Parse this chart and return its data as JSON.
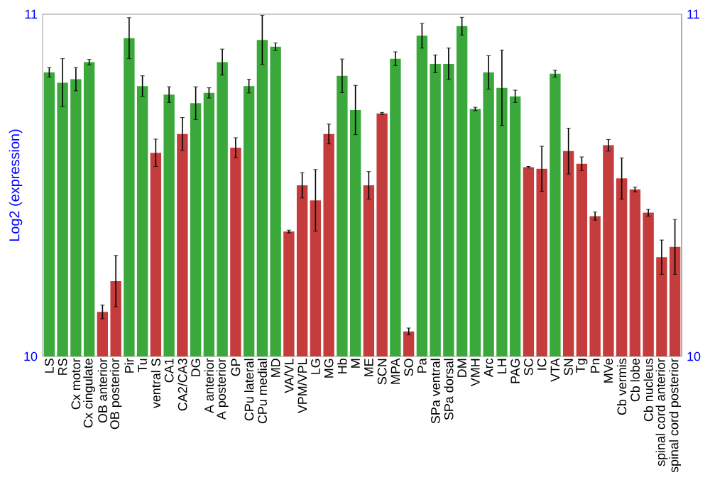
{
  "chart_data": {
    "type": "bar",
    "ylabel": "Log2 (expression)",
    "categories": [
      "LS",
      "RS",
      "Cx motor",
      "Cx cingulate",
      "OB anterior",
      "OB posterior",
      "Pir",
      "Tu",
      "ventral S",
      "CA1",
      "CA2/CA3",
      "DG",
      "A anterior",
      "A posterior",
      "GP",
      "CPu lateral",
      "CPu medial",
      "MD",
      "VA/VL",
      "VPM/VPL",
      "LG",
      "MG",
      "Hb",
      "M",
      "ME",
      "SCN",
      "MPA",
      "SO",
      "Pa",
      "SPa ventral",
      "SPa dorsal",
      "DM",
      "VMH",
      "Arc",
      "LH",
      "PAG",
      "SC",
      "IC",
      "VTA",
      "SN",
      "Tg",
      "Pn",
      "MVe",
      "Cb vermis",
      "Cb lobe",
      "Cb nucleus",
      "spinal cord anterior",
      "spinal cord posterior"
    ],
    "values": [
      10.83,
      10.8,
      10.81,
      10.86,
      10.13,
      10.22,
      10.93,
      10.79,
      10.595,
      10.765,
      10.65,
      10.74,
      10.77,
      10.86,
      10.61,
      10.79,
      10.925,
      10.905,
      10.365,
      10.5,
      10.456,
      10.65,
      10.82,
      10.72,
      10.5,
      10.71,
      10.87,
      10.073,
      10.937,
      10.855,
      10.855,
      10.965,
      10.723,
      10.83,
      10.785,
      10.76,
      10.553,
      10.548,
      10.826,
      10.6,
      10.563,
      10.41,
      10.617,
      10.52,
      10.488,
      10.42,
      10.29,
      10.32
    ],
    "errors": [
      0.014,
      0.07,
      0.034,
      0.008,
      0.02,
      0.075,
      0.06,
      0.03,
      0.04,
      0.023,
      0.048,
      0.048,
      0.015,
      0.038,
      0.029,
      0.02,
      0.072,
      0.011,
      0.004,
      0.037,
      0.09,
      0.029,
      0.049,
      0.072,
      0.04,
      0.003,
      0.02,
      0.01,
      0.036,
      0.026,
      0.046,
      0.026,
      0.005,
      0.049,
      0.11,
      0.018,
      0.002,
      0.066,
      0.01,
      0.067,
      0.02,
      0.012,
      0.017,
      0.06,
      0.007,
      0.01,
      0.05,
      0.08
    ],
    "colors": [
      "#3aa83a",
      "#3aa83a",
      "#3aa83a",
      "#3aa83a",
      "#c43c3c",
      "#c43c3c",
      "#3aa83a",
      "#3aa83a",
      "#c43c3c",
      "#3aa83a",
      "#c43c3c",
      "#3aa83a",
      "#3aa83a",
      "#3aa83a",
      "#c43c3c",
      "#3aa83a",
      "#3aa83a",
      "#3aa83a",
      "#c43c3c",
      "#c43c3c",
      "#c43c3c",
      "#c43c3c",
      "#3aa83a",
      "#3aa83a",
      "#c43c3c",
      "#c43c3c",
      "#3aa83a",
      "#c43c3c",
      "#3aa83a",
      "#3aa83a",
      "#3aa83a",
      "#3aa83a",
      "#3aa83a",
      "#3aa83a",
      "#3aa83a",
      "#3aa83a",
      "#c43c3c",
      "#c43c3c",
      "#3aa83a",
      "#c43c3c",
      "#c43c3c",
      "#c43c3c",
      "#c43c3c",
      "#c43c3c",
      "#c43c3c",
      "#c43c3c",
      "#c43c3c",
      "#c43c3c"
    ],
    "ylim": [
      10,
      11
    ],
    "yticks": [
      10,
      11
    ],
    "y2lim": [
      10,
      11
    ],
    "y2ticks": [
      10,
      11
    ]
  }
}
